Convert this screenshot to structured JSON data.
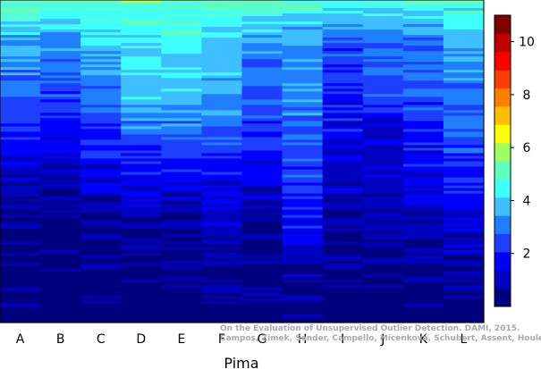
{
  "chart_data": {
    "type": "heatmap",
    "columns": [
      "A",
      "B",
      "C",
      "D",
      "E",
      "F",
      "G",
      "H",
      "I",
      "J",
      "K",
      "L"
    ],
    "xlabel": "Pima",
    "colorbar": {
      "ticks": [
        2,
        4,
        6,
        8,
        10
      ],
      "range": [
        0,
        11
      ],
      "colors": [
        "#00007f",
        "#0000bf",
        "#0000ff",
        "#1f3fff",
        "#1f7fff",
        "#3fbfff",
        "#3fffff",
        "#5fffbf",
        "#9fff5f",
        "#ffff00",
        "#ffbf00",
        "#ff7f00",
        "#ff3f00",
        "#ff0000",
        "#bf0000",
        "#7f0000"
      ]
    },
    "profiles": [
      [
        [
          0,
          5.1
        ],
        [
          0.12,
          3.6
        ],
        [
          0.26,
          3.0
        ],
        [
          0.42,
          2.0
        ],
        [
          0.55,
          1.1
        ],
        [
          0.68,
          0.6
        ],
        [
          1,
          0.1
        ]
      ],
      [
        [
          0,
          4.9
        ],
        [
          0.12,
          3.4
        ],
        [
          0.26,
          2.6
        ],
        [
          0.42,
          1.7
        ],
        [
          0.55,
          1.0
        ],
        [
          0.68,
          0.5
        ],
        [
          1,
          0.1
        ]
      ],
      [
        [
          0,
          5.0
        ],
        [
          0.12,
          3.8
        ],
        [
          0.26,
          3.3
        ],
        [
          0.42,
          2.2
        ],
        [
          0.55,
          1.4
        ],
        [
          0.68,
          0.6
        ],
        [
          1,
          0.1
        ]
      ],
      [
        [
          0,
          5.3
        ],
        [
          0.12,
          4.4
        ],
        [
          0.3,
          3.9
        ],
        [
          0.45,
          2.6
        ],
        [
          0.6,
          1.2
        ],
        [
          0.72,
          0.6
        ],
        [
          1,
          0.1
        ]
      ],
      [
        [
          0,
          5.3
        ],
        [
          0.12,
          4.3
        ],
        [
          0.3,
          3.8
        ],
        [
          0.45,
          2.6
        ],
        [
          0.6,
          1.2
        ],
        [
          0.72,
          0.6
        ],
        [
          1,
          0.1
        ]
      ],
      [
        [
          0,
          5.2
        ],
        [
          0.12,
          4.2
        ],
        [
          0.3,
          3.5
        ],
        [
          0.45,
          2.5
        ],
        [
          0.6,
          1.5
        ],
        [
          0.72,
          0.8
        ],
        [
          1,
          0.1
        ]
      ],
      [
        [
          0,
          5.0
        ],
        [
          0.12,
          3.5
        ],
        [
          0.26,
          2.8
        ],
        [
          0.42,
          2.1
        ],
        [
          0.55,
          1.3
        ],
        [
          0.68,
          0.6
        ],
        [
          1,
          0.1
        ]
      ],
      [
        [
          0,
          5.0
        ],
        [
          0.12,
          3.4
        ],
        [
          0.3,
          3.1
        ],
        [
          0.45,
          2.7
        ],
        [
          0.6,
          2.2
        ],
        [
          0.72,
          1.6
        ],
        [
          0.85,
          1.0
        ],
        [
          1,
          0.2
        ]
      ],
      [
        [
          0,
          4.6
        ],
        [
          0.12,
          2.6
        ],
        [
          0.26,
          2.0
        ],
        [
          0.42,
          1.5
        ],
        [
          0.55,
          1.2
        ],
        [
          0.68,
          0.7
        ],
        [
          1,
          0.1
        ]
      ],
      [
        [
          0,
          4.7
        ],
        [
          0.12,
          3.0
        ],
        [
          0.26,
          2.6
        ],
        [
          0.42,
          1.4
        ],
        [
          0.55,
          1.1
        ],
        [
          0.68,
          0.8
        ],
        [
          1,
          0.1
        ]
      ],
      [
        [
          0,
          4.6
        ],
        [
          0.12,
          3.1
        ],
        [
          0.26,
          2.6
        ],
        [
          0.42,
          2.0
        ],
        [
          0.55,
          1.5
        ],
        [
          0.68,
          0.9
        ],
        [
          1,
          0.1
        ]
      ],
      [
        [
          0,
          4.7
        ],
        [
          0.12,
          3.6
        ],
        [
          0.26,
          3.1
        ],
        [
          0.42,
          2.6
        ],
        [
          0.55,
          1.9
        ],
        [
          0.68,
          1.3
        ],
        [
          1,
          0.2
        ]
      ]
    ],
    "credit": [
      "On the Evaluation of Unsupervised Outlier Detection. DAMI, 2015.",
      "Campos, Zimek, Sander, Campello, Micenková, Schubert, Assent, Houle"
    ]
  }
}
